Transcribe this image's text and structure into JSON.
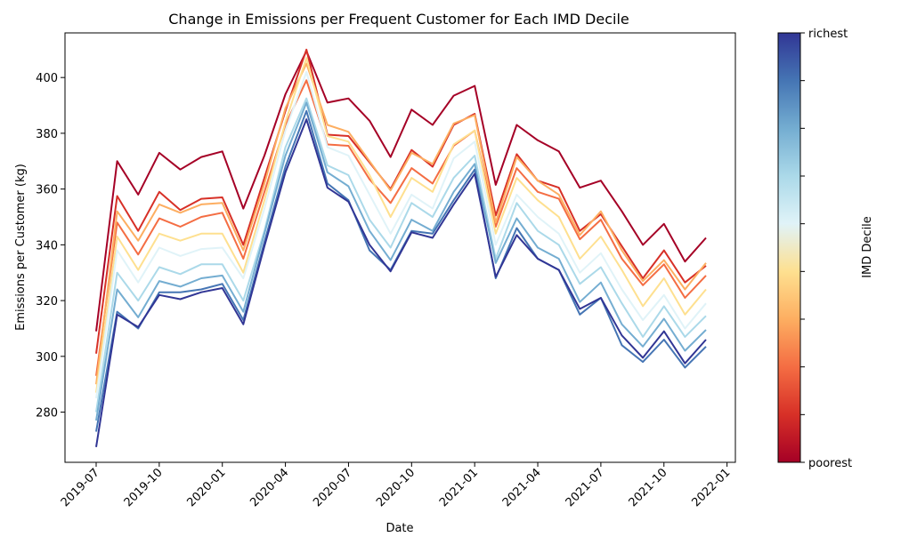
{
  "chart_data": {
    "type": "line",
    "title": "Change in Emissions per Frequent Customer for Each IMD Decile",
    "xlabel": "Date",
    "ylabel": "Emissions per Customer (kg)",
    "ylim": [
      262,
      416
    ],
    "yticks": [
      "280",
      "300",
      "320",
      "340",
      "360",
      "380",
      "400"
    ],
    "xticks": [
      "2019-07",
      "2019-10",
      "2020-01",
      "2020-04",
      "2020-07",
      "2020-10",
      "2021-01",
      "2021-04",
      "2021-07",
      "2021-10",
      "2022-01"
    ],
    "x": [
      "2019-07",
      "2019-08",
      "2019-09",
      "2019-10",
      "2019-11",
      "2019-12",
      "2020-01",
      "2020-02",
      "2020-03",
      "2020-04",
      "2020-05",
      "2020-06",
      "2020-07",
      "2020-08",
      "2020-09",
      "2020-10",
      "2020-11",
      "2020-12",
      "2021-01",
      "2021-02",
      "2021-03",
      "2021-04",
      "2021-05",
      "2021-06",
      "2021-07",
      "2021-08",
      "2021-09",
      "2021-10",
      "2021-11",
      "2021-12"
    ],
    "grid": false,
    "colorbar": {
      "label": "IMD Decile",
      "top_label": "richest",
      "bottom_label": "poorest",
      "colors": [
        "#a50026",
        "#d73027",
        "#f46d43",
        "#fdae61",
        "#fee090",
        "#e0f3f8",
        "#abd9e9",
        "#74add1",
        "#4575b4",
        "#313695"
      ]
    },
    "series": [
      {
        "values": [
          309,
          370,
          358,
          373,
          367,
          371.5,
          373.5,
          353,
          372,
          394,
          409.5,
          391,
          392.5,
          384.5,
          371.5,
          388.5,
          383,
          393.5,
          397,
          361.5,
          383,
          377.5,
          373.5,
          360.5,
          363,
          352,
          340,
          347.5,
          334,
          342.5
        ]
      },
      {
        "values": [
          301,
          357.5,
          345,
          359,
          352.5,
          356.5,
          357,
          340,
          364,
          388,
          410,
          379.5,
          379,
          369.5,
          360,
          374,
          368,
          383,
          387,
          350.5,
          372.5,
          363,
          360.5,
          345,
          351,
          339.5,
          328,
          338,
          326.5,
          332.5
        ]
      },
      {
        "values": [
          293,
          348,
          336.5,
          349.5,
          346.5,
          350,
          351.5,
          335,
          359,
          383,
          399,
          376,
          375.5,
          363.5,
          355,
          367.5,
          362,
          375.5,
          381,
          346.5,
          367.5,
          359,
          356.5,
          342,
          349,
          335,
          325.5,
          333,
          321,
          329
        ]
      },
      {
        "values": [
          290,
          352,
          341.5,
          354.5,
          351.5,
          354.5,
          355,
          338,
          362,
          389,
          405,
          383,
          380.5,
          370,
          359.5,
          373,
          369,
          383.5,
          386.5,
          348,
          371.5,
          363,
          358,
          343.5,
          352,
          338,
          327,
          334.5,
          324,
          333.5
        ]
      },
      {
        "values": [
          287,
          343,
          331,
          344,
          341.5,
          344,
          344,
          330,
          356,
          384,
          407,
          379,
          377,
          365,
          350,
          364,
          359,
          376,
          381,
          344,
          364,
          356,
          350,
          335,
          343,
          331,
          318,
          328,
          315,
          324
        ]
      },
      {
        "values": [
          285,
          338,
          326.5,
          339,
          336,
          338.5,
          339,
          328,
          353,
          381,
          402,
          375,
          372,
          358,
          344,
          358,
          353,
          371,
          377,
          340,
          358,
          350,
          344,
          330,
          337,
          324,
          313,
          322,
          310,
          319
        ]
      },
      {
        "values": [
          280,
          330,
          320,
          332,
          329.5,
          333,
          333,
          320,
          345,
          375,
          392.5,
          368.5,
          365,
          349,
          339,
          355,
          350,
          364,
          372,
          335,
          355,
          345,
          340,
          326,
          332,
          319,
          307,
          318,
          307,
          314.5
        ]
      },
      {
        "values": [
          277,
          324,
          314,
          327,
          325,
          328,
          329,
          316,
          344,
          372,
          391,
          366,
          361,
          345,
          334.5,
          349,
          345,
          359,
          369,
          333.5,
          349.5,
          339,
          335,
          319.5,
          326.5,
          311.5,
          303.5,
          313.5,
          302,
          309.5
        ]
      },
      {
        "values": [
          273,
          316,
          310,
          323,
          323,
          324,
          326,
          313,
          341,
          368,
          388,
          362,
          356,
          338,
          331,
          345,
          344,
          356,
          367,
          328,
          346,
          335,
          331,
          315,
          321,
          304,
          298,
          306,
          296,
          303.5
        ]
      },
      {
        "values": [
          267.5,
          315,
          310.5,
          322,
          320.5,
          323,
          324.5,
          311.5,
          339.5,
          366,
          385,
          360.5,
          355.5,
          340,
          330.5,
          344.5,
          342.5,
          354.5,
          365.5,
          328.5,
          343.5,
          335,
          331,
          317,
          321,
          307.5,
          299.5,
          309,
          297.5,
          306
        ]
      }
    ]
  }
}
